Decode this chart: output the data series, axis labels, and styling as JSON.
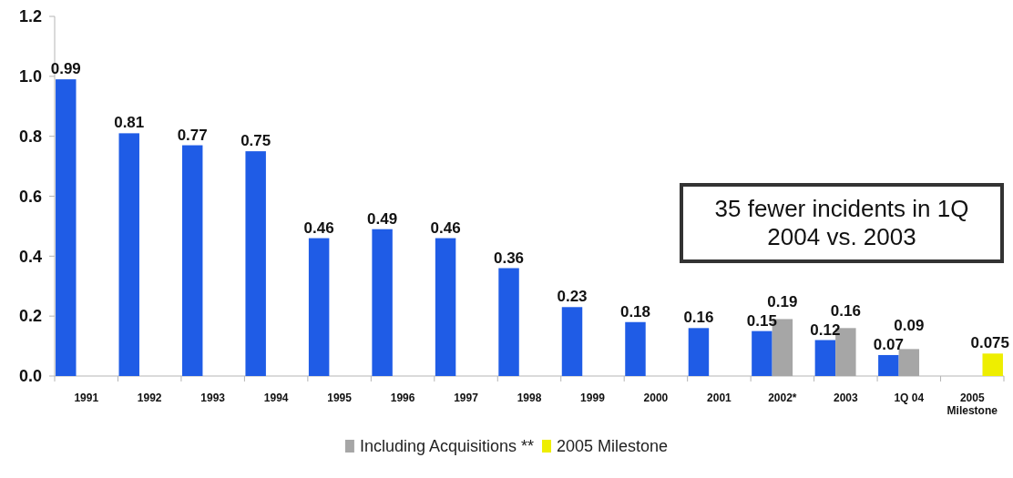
{
  "chart_data": {
    "type": "bar",
    "categories": [
      "1991",
      "1992",
      "1993",
      "1994",
      "1995",
      "1996",
      "1997",
      "1998",
      "1999",
      "2000",
      "2001",
      "2002*",
      "2003",
      "1Q 04",
      "2005 Milestone"
    ],
    "series": [
      {
        "color": "#1f5ce6",
        "values": [
          0.99,
          0.81,
          0.77,
          0.75,
          0.46,
          0.49,
          0.46,
          0.36,
          0.23,
          0.18,
          0.16,
          0.15,
          0.12,
          0.07,
          null
        ]
      },
      {
        "name": "Including Acquisitions **",
        "color": "#a6a6a6",
        "values": [
          null,
          null,
          null,
          null,
          null,
          null,
          null,
          null,
          null,
          null,
          null,
          0.19,
          0.16,
          0.09,
          null
        ]
      },
      {
        "name": "2005 Milestone",
        "color": "#eeee00",
        "values": [
          null,
          null,
          null,
          null,
          null,
          null,
          null,
          null,
          null,
          null,
          null,
          null,
          null,
          null,
          0.075
        ]
      }
    ],
    "ylim": [
      0,
      1.2
    ],
    "yticks": [
      {
        "value": 0,
        "label": "0.0"
      },
      0.2,
      0.4,
      0.6,
      0.8,
      {
        "value": 1,
        "label": "1.0"
      },
      1.2
    ],
    "data_labels": true,
    "legend": "bottom",
    "annotations": [
      "35 fewer incidents in 1Q 2004 vs. 2003"
    ]
  }
}
